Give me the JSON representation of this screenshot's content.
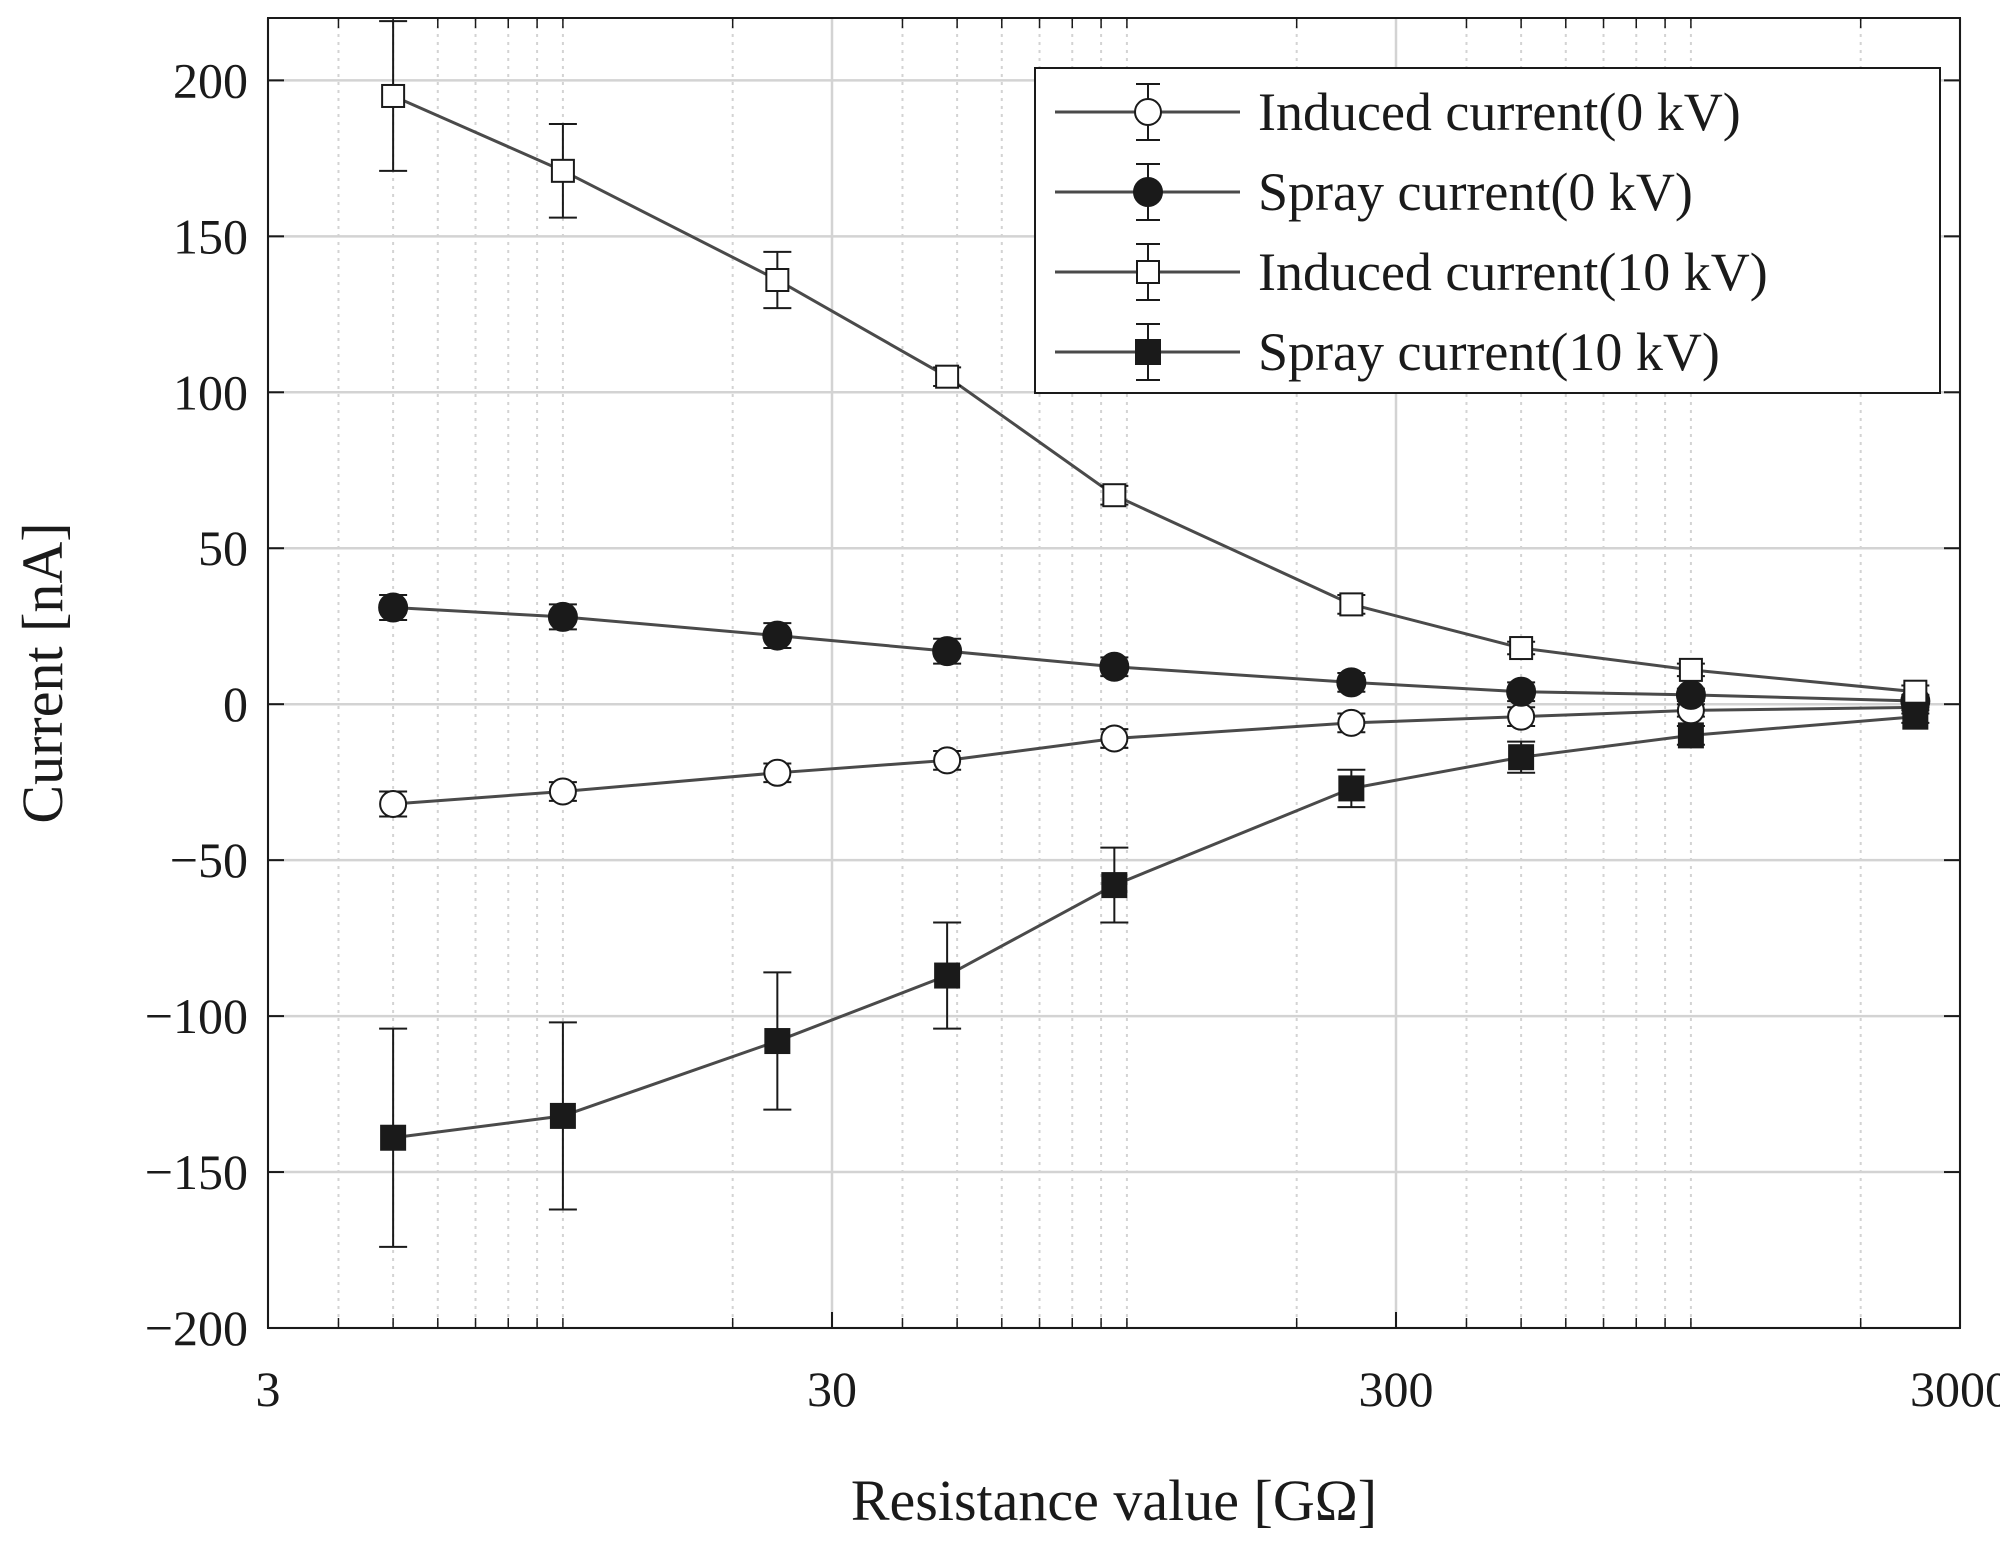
{
  "chart_data": {
    "type": "line",
    "xlabel": "Resistance value [GΩ]",
    "ylabel": "Current [nA]",
    "xscale": "log",
    "xlim": [
      3,
      3000
    ],
    "ylim": [
      -200,
      220
    ],
    "xticks": [
      3,
      30,
      300,
      3000
    ],
    "xtick_labels": [
      "3",
      "30",
      "300",
      "3000"
    ],
    "yticks": [
      -200,
      -150,
      -100,
      -50,
      0,
      50,
      100,
      150,
      200
    ],
    "ytick_labels": [
      "−200",
      "−150",
      "−100",
      "−50",
      "0",
      "50",
      "100",
      "150",
      "200"
    ],
    "grid": true,
    "legend_position": "top-right",
    "x": [
      5,
      10,
      24,
      48,
      95,
      250,
      500,
      1000,
      2500
    ],
    "series": [
      {
        "name": "Induced current(0 kV)",
        "marker": "open-circle",
        "values": [
          -32,
          -28,
          -22,
          -18,
          -11,
          -6,
          -4,
          -2,
          -1
        ],
        "errors": [
          4,
          3,
          3,
          3,
          3,
          3,
          3,
          2,
          2
        ]
      },
      {
        "name": "Spray current(0 kV)",
        "marker": "filled-circle",
        "values": [
          31,
          28,
          22,
          17,
          12,
          7,
          4,
          3,
          1
        ],
        "errors": [
          4,
          4,
          4,
          4,
          3,
          3,
          3,
          2,
          2
        ]
      },
      {
        "name": "Induced current(10 kV)",
        "marker": "open-square",
        "values": [
          195,
          171,
          136,
          105,
          67,
          32,
          18,
          11,
          4
        ],
        "errors": [
          24,
          15,
          9,
          3,
          3,
          3,
          2,
          2,
          2
        ]
      },
      {
        "name": "Spray current(10 kV)",
        "marker": "filled-square",
        "values": [
          -139,
          -132,
          -108,
          -87,
          -58,
          -27,
          -17,
          -10,
          -4
        ],
        "errors": [
          35,
          30,
          22,
          17,
          12,
          6,
          5,
          3,
          2
        ]
      }
    ],
    "colors": {
      "line": "#4a4a4a",
      "marker": "#1a1a1a",
      "grid": "#d3d3d3",
      "axis": "#1a1a1a"
    }
  }
}
